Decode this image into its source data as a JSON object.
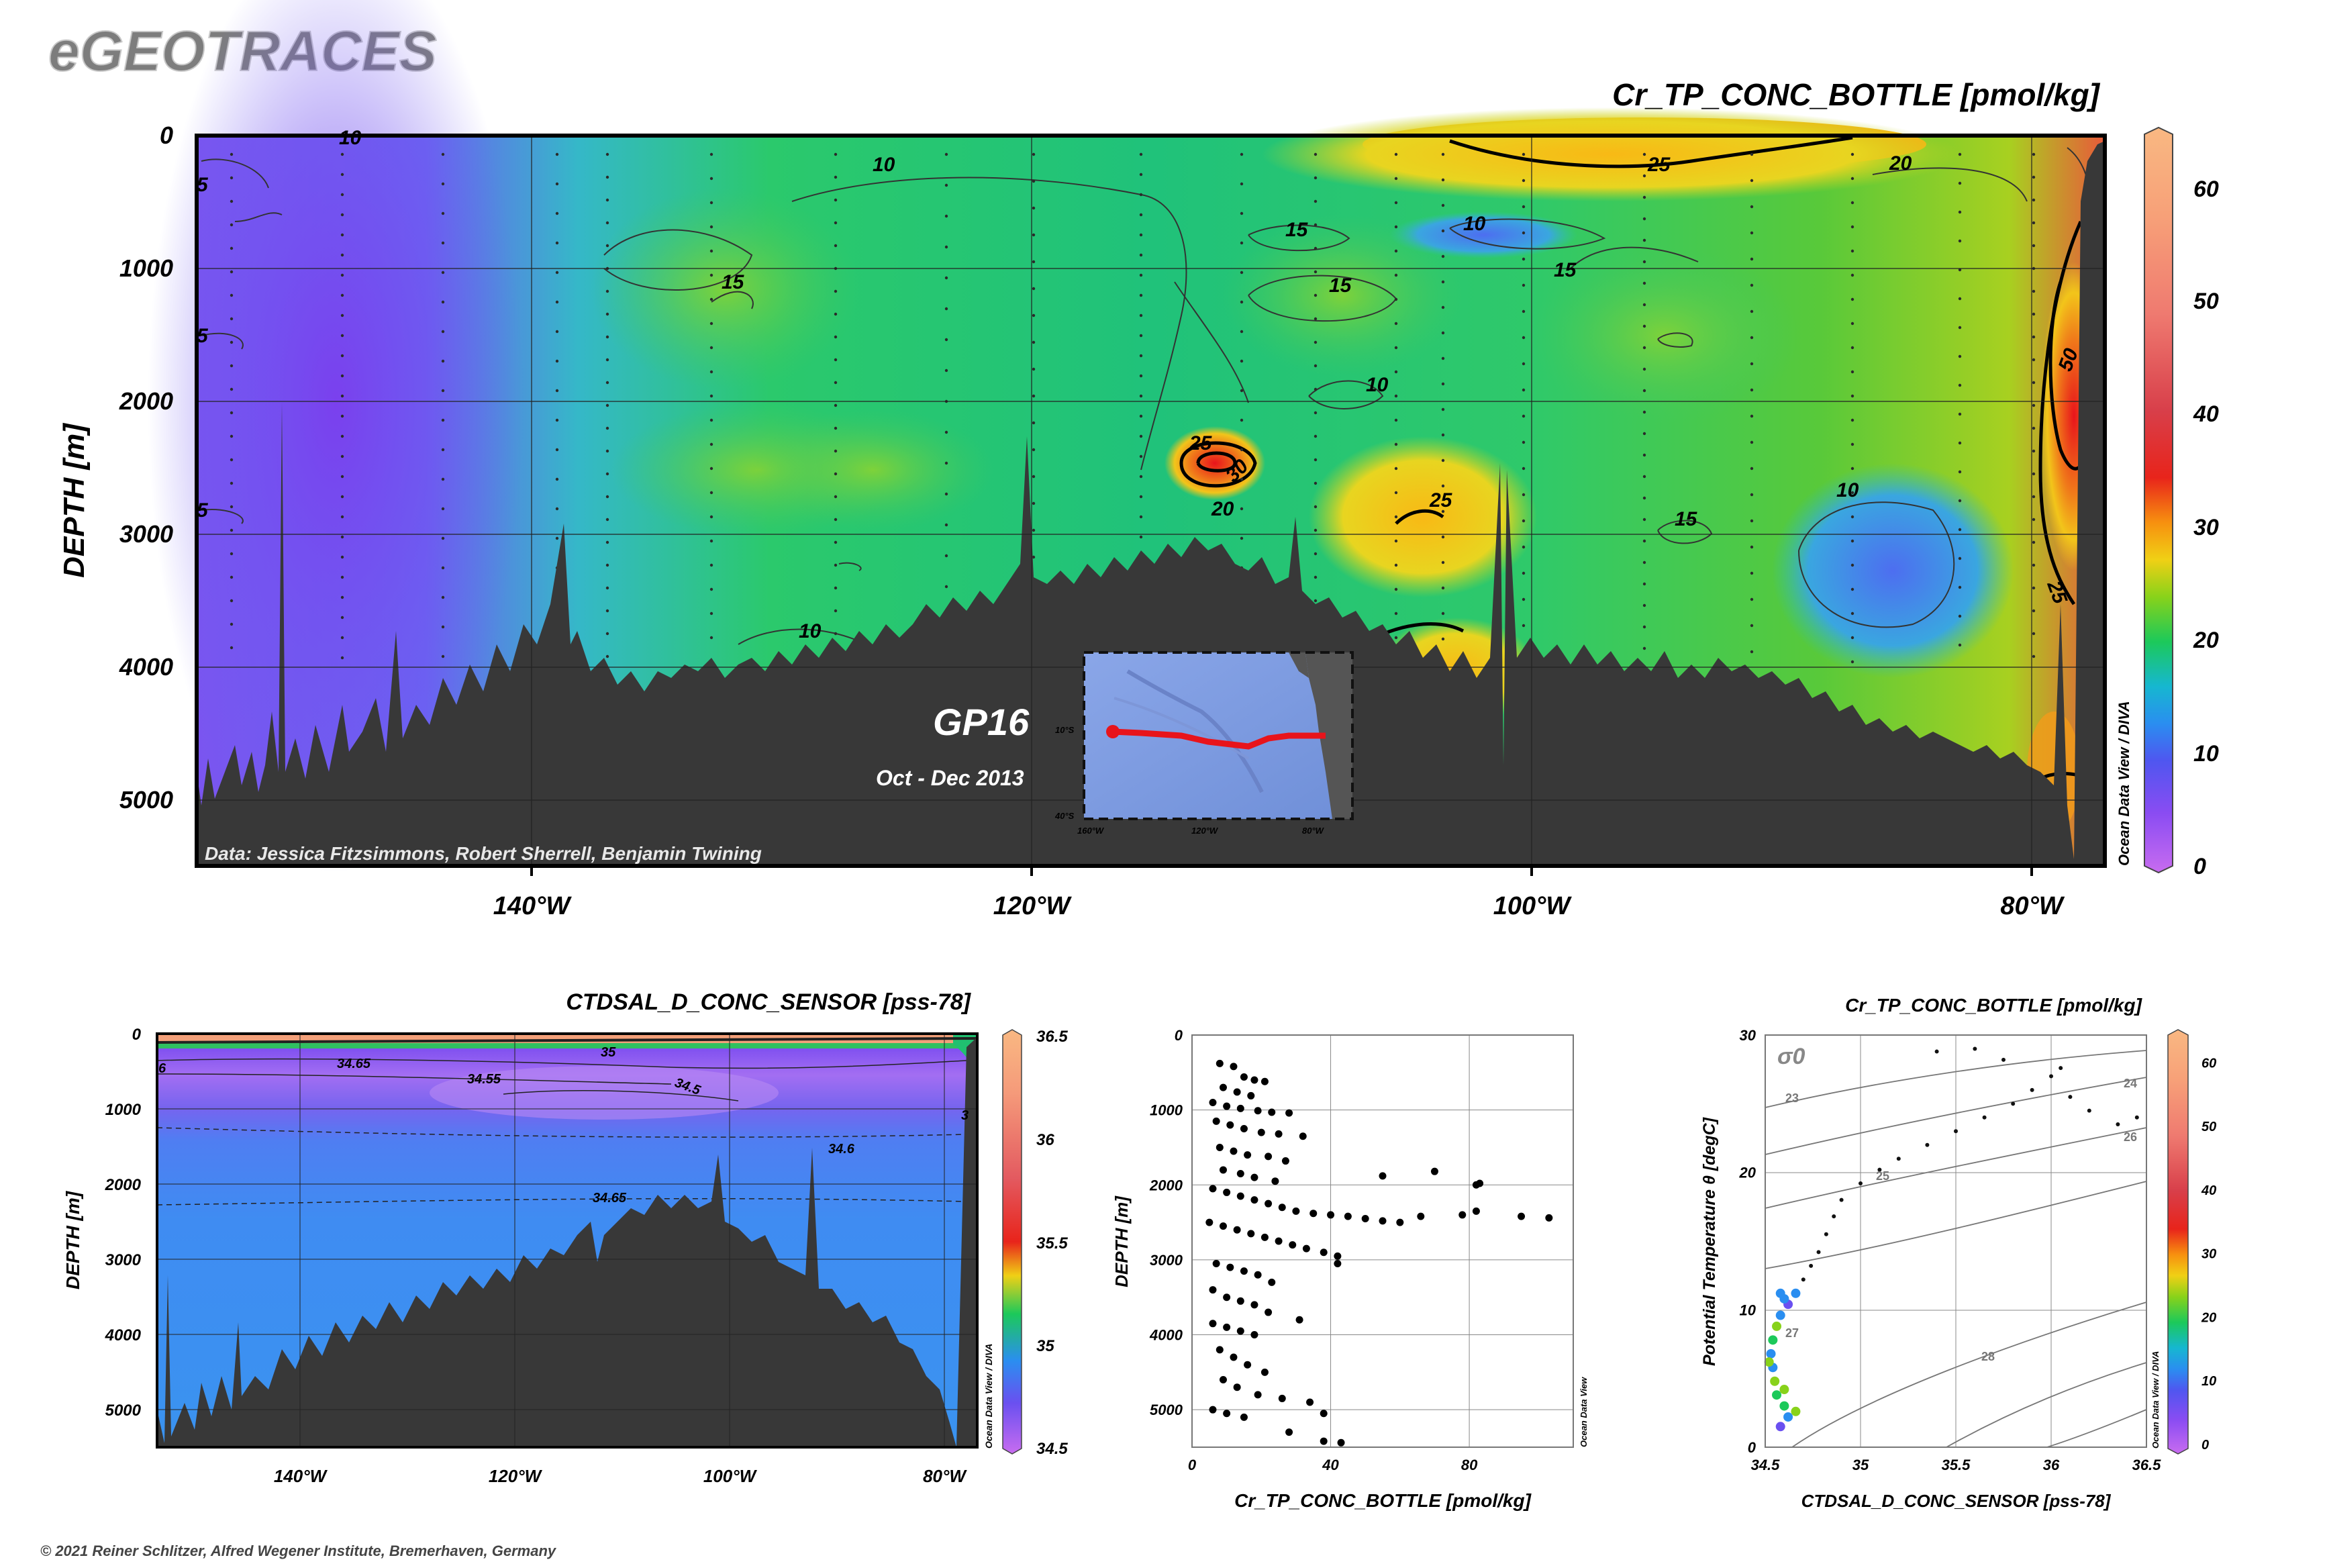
{
  "brand": "eGEOTRACES",
  "copyright": "© 2021 Reiner Schlitzer, Alfred Wegener Institute, Bremerhaven, Germany",
  "odv_credit": "Ocean Data View / DIVA",
  "odv_credit_short": "Ocean Data View",
  "main_section": {
    "title": "Cr_TP_CONC_BOTTLE [pmol/kg]",
    "ylabel": "DEPTH [m]",
    "y_ticks": [
      "0",
      "1000",
      "2000",
      "3000",
      "4000",
      "5000"
    ],
    "x_ticks": [
      "140°W",
      "120°W",
      "100°W",
      "80°W"
    ],
    "colorbar_ticks": [
      "0",
      "10",
      "20",
      "30",
      "40",
      "50",
      "60"
    ],
    "cruise": "GP16",
    "period": "Oct - Dec 2013",
    "data_credit": "Data: Jessica Fitzsimmons, Robert Sherrell, Benjamin Twining",
    "contour_labels": [
      "10",
      "10",
      "25",
      "20",
      "15",
      "10",
      "15",
      "15",
      "15",
      "10",
      "25",
      "30",
      "20",
      "25",
      "15",
      "10",
      "10",
      "50",
      "25",
      "5",
      "5",
      "5"
    ],
    "inset_map": {
      "lat_labels": [
        "10°S",
        "40°S"
      ],
      "lon_labels": [
        "160°W",
        "120°W",
        "80°W"
      ],
      "route_color": "#e8141b"
    }
  },
  "salinity_section": {
    "title": "CTDSAL_D_CONC_SENSOR [pss-78]",
    "ylabel": "DEPTH [m]",
    "y_ticks": [
      "0",
      "1000",
      "2000",
      "3000",
      "4000",
      "5000"
    ],
    "x_ticks": [
      "140°W",
      "120°W",
      "100°W",
      "80°W"
    ],
    "colorbar_ticks": [
      "34.5",
      "35",
      "35.5",
      "36",
      "36.5"
    ],
    "contour_labels": [
      "35",
      "34.65",
      "34.55",
      "34.5",
      "34.6",
      "34.65",
      "3",
      "6"
    ]
  },
  "chart_data": [
    {
      "type": "scatter",
      "title": "",
      "xlabel": "Cr_TP_CONC_BOTTLE [pmol/kg]",
      "ylabel": "DEPTH [m]",
      "x_ticks": [
        "0",
        "40",
        "80"
      ],
      "y_ticks": [
        "0",
        "1000",
        "2000",
        "3000",
        "4000",
        "5000"
      ],
      "xlim": [
        0,
        110
      ],
      "ylim": [
        5500,
        0
      ],
      "grid": true,
      "points": [
        [
          8,
          380
        ],
        [
          12,
          420
        ],
        [
          15,
          560
        ],
        [
          18,
          600
        ],
        [
          21,
          620
        ],
        [
          9,
          700
        ],
        [
          13,
          760
        ],
        [
          17,
          810
        ],
        [
          6,
          900
        ],
        [
          10,
          950
        ],
        [
          14,
          980
        ],
        [
          19,
          1010
        ],
        [
          23,
          1030
        ],
        [
          28,
          1040
        ],
        [
          7,
          1150
        ],
        [
          11,
          1200
        ],
        [
          15,
          1250
        ],
        [
          20,
          1300
        ],
        [
          25,
          1320
        ],
        [
          32,
          1350
        ],
        [
          8,
          1500
        ],
        [
          12,
          1550
        ],
        [
          16,
          1600
        ],
        [
          22,
          1620
        ],
        [
          27,
          1680
        ],
        [
          9,
          1800
        ],
        [
          14,
          1850
        ],
        [
          18,
          1900
        ],
        [
          24,
          1950
        ],
        [
          55,
          1880
        ],
        [
          70,
          1820
        ],
        [
          82,
          2000
        ],
        [
          83,
          1980
        ],
        [
          6,
          2050
        ],
        [
          10,
          2100
        ],
        [
          14,
          2150
        ],
        [
          18,
          2200
        ],
        [
          22,
          2250
        ],
        [
          26,
          2300
        ],
        [
          30,
          2350
        ],
        [
          35,
          2380
        ],
        [
          40,
          2400
        ],
        [
          45,
          2420
        ],
        [
          50,
          2450
        ],
        [
          55,
          2480
        ],
        [
          60,
          2500
        ],
        [
          66,
          2420
        ],
        [
          78,
          2400
        ],
        [
          82,
          2350
        ],
        [
          95,
          2420
        ],
        [
          103,
          2440
        ],
        [
          5,
          2500
        ],
        [
          9,
          2550
        ],
        [
          13,
          2600
        ],
        [
          17,
          2650
        ],
        [
          21,
          2700
        ],
        [
          25,
          2750
        ],
        [
          29,
          2800
        ],
        [
          33,
          2850
        ],
        [
          38,
          2900
        ],
        [
          42,
          2950
        ],
        [
          7,
          3050
        ],
        [
          11,
          3100
        ],
        [
          15,
          3150
        ],
        [
          19,
          3200
        ],
        [
          23,
          3300
        ],
        [
          42,
          3050
        ],
        [
          6,
          3400
        ],
        [
          10,
          3500
        ],
        [
          14,
          3550
        ],
        [
          18,
          3600
        ],
        [
          22,
          3700
        ],
        [
          31,
          3800
        ],
        [
          6,
          3850
        ],
        [
          10,
          3900
        ],
        [
          14,
          3950
        ],
        [
          18,
          4000
        ],
        [
          8,
          4200
        ],
        [
          12,
          4300
        ],
        [
          16,
          4400
        ],
        [
          21,
          4500
        ],
        [
          9,
          4600
        ],
        [
          13,
          4700
        ],
        [
          19,
          4800
        ],
        [
          26,
          4850
        ],
        [
          34,
          4900
        ],
        [
          6,
          5000
        ],
        [
          10,
          5050
        ],
        [
          15,
          5100
        ],
        [
          38,
          5050
        ],
        [
          28,
          5300
        ],
        [
          38,
          5420
        ],
        [
          43,
          5440
        ]
      ]
    },
    {
      "type": "scatter",
      "title": "Cr_TP_CONC_BOTTLE [pmol/kg]",
      "xlabel": "CTDSAL_D_CONC_SENSOR [pss-78]",
      "ylabel": "Potential Temperature θ [degC]",
      "x_ticks": [
        "34.5",
        "35",
        "35.5",
        "36",
        "36.5"
      ],
      "y_ticks": [
        "0",
        "10",
        "20",
        "30"
      ],
      "xlim": [
        34.5,
        36.5
      ],
      "ylim": [
        0,
        30
      ],
      "isopycnal_label": "σ0",
      "isopycnal_values": [
        "23",
        "24",
        "25",
        "26",
        "27",
        "28"
      ],
      "colorbar_ticks": [
        "0",
        "10",
        "20",
        "30",
        "40",
        "50",
        "60"
      ],
      "points": [
        [
          34.58,
          1.5,
          8
        ],
        [
          34.62,
          2.2,
          12
        ],
        [
          34.6,
          3.0,
          15
        ],
        [
          34.56,
          3.8,
          18
        ],
        [
          34.55,
          4.8,
          22
        ],
        [
          34.54,
          5.8,
          10
        ],
        [
          34.53,
          6.8,
          14
        ],
        [
          34.54,
          7.8,
          16
        ],
        [
          34.56,
          8.8,
          20
        ],
        [
          34.58,
          9.6,
          12
        ],
        [
          34.62,
          10.4,
          9
        ],
        [
          34.66,
          11.2,
          11
        ],
        [
          34.7,
          12.2,
          13
        ],
        [
          34.74,
          13.2,
          12
        ],
        [
          34.78,
          14.2,
          14
        ],
        [
          34.82,
          15.5,
          13
        ],
        [
          34.86,
          16.8,
          12
        ],
        [
          34.9,
          18.0,
          15
        ],
        [
          35.0,
          19.2,
          13
        ],
        [
          35.1,
          20.2,
          12
        ],
        [
          35.2,
          21.0,
          14
        ],
        [
          35.35,
          22.0,
          13
        ],
        [
          35.5,
          23.0,
          15
        ],
        [
          35.65,
          24.0,
          14
        ],
        [
          35.8,
          25.0,
          12
        ],
        [
          35.9,
          26.0,
          15
        ],
        [
          36.0,
          27.0,
          14
        ],
        [
          36.1,
          25.5,
          12
        ],
        [
          36.2,
          24.5,
          13
        ],
        [
          36.35,
          23.5,
          14
        ],
        [
          36.45,
          24.0,
          12
        ],
        [
          35.4,
          28.8,
          13
        ],
        [
          35.6,
          29.0,
          12
        ],
        [
          35.75,
          28.2,
          14
        ],
        [
          36.05,
          27.6,
          13
        ],
        [
          34.66,
          2.6,
          24
        ],
        [
          34.6,
          4.2,
          20
        ],
        [
          34.52,
          6.2,
          21
        ],
        [
          34.6,
          10.8,
          10
        ],
        [
          34.58,
          11.2,
          12
        ]
      ]
    }
  ]
}
